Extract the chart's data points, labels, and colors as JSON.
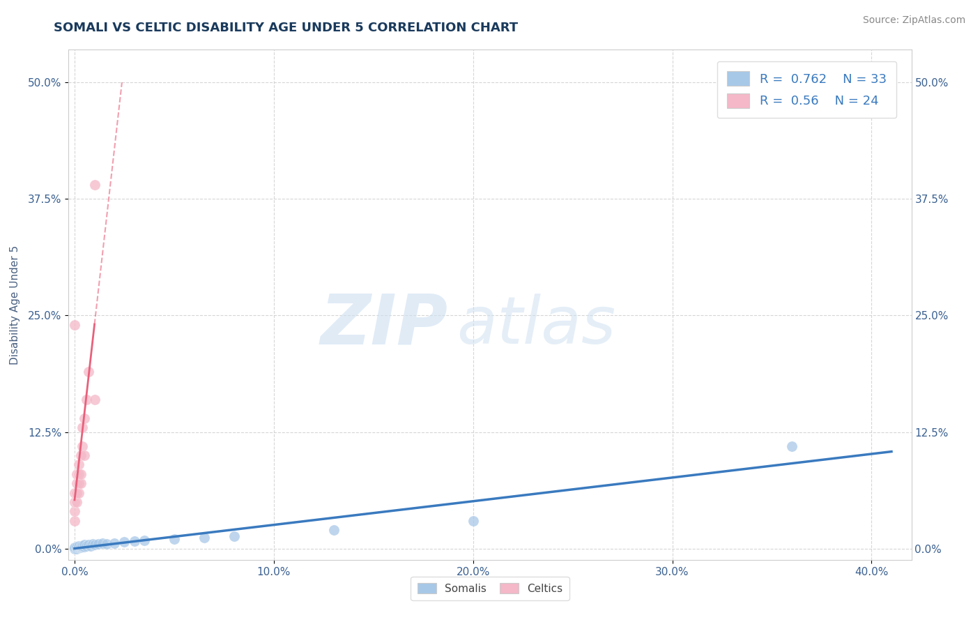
{
  "title": "SOMALI VS CELTIC DISABILITY AGE UNDER 5 CORRELATION CHART",
  "source": "Source: ZipAtlas.com",
  "xlabel_ticks": [
    "0.0%",
    "10.0%",
    "20.0%",
    "30.0%",
    "40.0%"
  ],
  "xlabel_vals": [
    0.0,
    0.1,
    0.2,
    0.3,
    0.4
  ],
  "ylabel_ticks": [
    "0.0%",
    "12.5%",
    "25.0%",
    "37.5%",
    "50.0%"
  ],
  "ylabel_vals": [
    0.0,
    0.125,
    0.25,
    0.375,
    0.5
  ],
  "ylabel_label": "Disability Age Under 5",
  "xlim": [
    -0.003,
    0.42
  ],
  "ylim": [
    -0.012,
    0.535
  ],
  "somali_R": 0.762,
  "somali_N": 33,
  "celtic_R": 0.56,
  "celtic_N": 24,
  "somali_color": "#a8c8e8",
  "celtic_color": "#f4b8c8",
  "somali_line_color": "#3a7abf",
  "celtic_line_color": "#e8607a",
  "somali_x": [
    0.0,
    0.0,
    0.001,
    0.001,
    0.001,
    0.002,
    0.002,
    0.002,
    0.003,
    0.003,
    0.003,
    0.004,
    0.004,
    0.005,
    0.005,
    0.006,
    0.007,
    0.008,
    0.009,
    0.01,
    0.012,
    0.014,
    0.016,
    0.02,
    0.025,
    0.03,
    0.035,
    0.05,
    0.065,
    0.08,
    0.13,
    0.2,
    0.36
  ],
  "somali_y": [
    0.0,
    0.001,
    0.0,
    0.001,
    0.002,
    0.001,
    0.002,
    0.003,
    0.001,
    0.002,
    0.003,
    0.002,
    0.003,
    0.002,
    0.004,
    0.003,
    0.004,
    0.003,
    0.005,
    0.004,
    0.005,
    0.006,
    0.005,
    0.006,
    0.007,
    0.008,
    0.009,
    0.01,
    0.012,
    0.013,
    0.02,
    0.03,
    0.11
  ],
  "celtic_x": [
    0.0,
    0.0,
    0.0,
    0.0,
    0.001,
    0.001,
    0.001,
    0.001,
    0.002,
    0.002,
    0.002,
    0.002,
    0.003,
    0.003,
    0.003,
    0.004,
    0.004,
    0.005,
    0.005,
    0.006,
    0.007,
    0.01,
    0.01,
    0.0
  ],
  "celtic_y": [
    0.03,
    0.04,
    0.05,
    0.06,
    0.05,
    0.06,
    0.07,
    0.08,
    0.06,
    0.07,
    0.08,
    0.09,
    0.07,
    0.08,
    0.1,
    0.11,
    0.13,
    0.1,
    0.14,
    0.16,
    0.19,
    0.16,
    0.39,
    0.24
  ],
  "watermark_zip": "ZIP",
  "watermark_atlas": "atlas",
  "background_color": "#ffffff",
  "grid_color": "#cccccc",
  "title_color": "#1a3a5c",
  "axis_label_color": "#4a6080",
  "tick_label_color": "#3a6090",
  "r_value_color": "#3a7abf",
  "source_color": "#888888"
}
